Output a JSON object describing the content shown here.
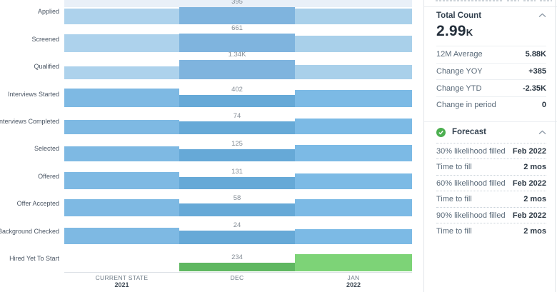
{
  "chart_data": {
    "type": "bar",
    "title": "",
    "xlabel": "",
    "ylabel": "",
    "note": "Recruiting funnel by stage; one bar per time period per stage, bottom-aligned; numeric labels shown are DEC period counts; heights_px are relative bar magnitudes read from pixels",
    "categories": [
      "Applied",
      "Screened",
      "Qualified",
      "Interviews Started",
      "Interviews Completed",
      "Selected",
      "Offered",
      "Offer Accepted",
      "Background Checked",
      "Hired Yet To Start"
    ],
    "dec_values": [
      "395",
      "661",
      "1.34K",
      "402",
      "74",
      "125",
      "131",
      "58",
      "24",
      "234"
    ],
    "columns": [
      {
        "line1": "CURRENT STATE",
        "line2": "2021"
      },
      {
        "line1": "DEC",
        "line2": ""
      },
      {
        "line1": "JAN",
        "line2": "2022"
      }
    ],
    "stages": [
      {
        "label": "Applied",
        "value": "395",
        "palette": "light",
        "heights": {
          "cs": 22,
          "dec": 24,
          "jan": 22
        }
      },
      {
        "label": "Screened",
        "value": "661",
        "palette": "light",
        "heights": {
          "cs": 25,
          "dec": 26,
          "jan": 23
        }
      },
      {
        "label": "Qualified",
        "value": "1.34K",
        "palette": "light",
        "heights": {
          "cs": 18,
          "dec": 27,
          "jan": 20
        }
      },
      {
        "label": "Interviews Started",
        "value": "402",
        "palette": "medium",
        "heights": {
          "cs": 26,
          "dec": 17,
          "jan": 24
        }
      },
      {
        "label": "Interviews Completed",
        "value": "74",
        "palette": "medium",
        "heights": {
          "cs": 20,
          "dec": 18,
          "jan": 22
        }
      },
      {
        "label": "Selected",
        "value": "125",
        "palette": "medium",
        "heights": {
          "cs": 21,
          "dec": 17,
          "jan": 23
        }
      },
      {
        "label": "Offered",
        "value": "131",
        "palette": "medium",
        "heights": {
          "cs": 24,
          "dec": 17,
          "jan": 22
        }
      },
      {
        "label": "Offer Accepted",
        "value": "58",
        "palette": "medium",
        "heights": {
          "cs": 24,
          "dec": 18,
          "jan": 24
        }
      },
      {
        "label": "Background Checked",
        "value": "24",
        "palette": "medium",
        "heights": {
          "cs": 23,
          "dec": 19,
          "jan": 21
        }
      },
      {
        "label": "Hired Yet To Start",
        "value": "234",
        "palette": "green",
        "heights": {
          "cs": 0,
          "dec": 12,
          "jan": 24
        }
      }
    ],
    "palettes": {
      "light": {
        "cs": "#add2ec",
        "dec": "#7fb4de",
        "jan": "#a9d0ea"
      },
      "medium": {
        "cs": "#7eb9e3",
        "dec": "#66a9d7",
        "jan": "#7cbae5"
      },
      "green": {
        "cs": "transparent",
        "dec": "#5fb761",
        "jan": "#7dd377"
      }
    },
    "top_strip_color": "#e9f0f8",
    "legend": "none",
    "grid": "off"
  },
  "panel": {
    "total_count": {
      "title": "Total Count",
      "value": "2.99",
      "value_unit": "K",
      "rows": [
        {
          "label": "12M Average",
          "value": "5.88K"
        },
        {
          "label": "Change YOY",
          "value": "+385"
        },
        {
          "label": "Change YTD",
          "value": "-2.35K"
        },
        {
          "label": "Change in period",
          "value": "0"
        }
      ]
    },
    "forecast": {
      "title": "Forecast",
      "icon": "check-circle-icon",
      "icon_color": "#4caf50",
      "rows": [
        {
          "label": "30% likelihood filled",
          "value": "Feb 2022"
        },
        {
          "label": "Time to fill",
          "value": "2 mos"
        },
        {
          "label": "60% likelihood filled",
          "value": "Feb 2022"
        },
        {
          "label": "Time to fill",
          "value": "2 mos"
        },
        {
          "label": "90% likelihood filled",
          "value": "Feb 2022"
        },
        {
          "label": "Time to fill",
          "value": "2 mos"
        }
      ]
    }
  }
}
